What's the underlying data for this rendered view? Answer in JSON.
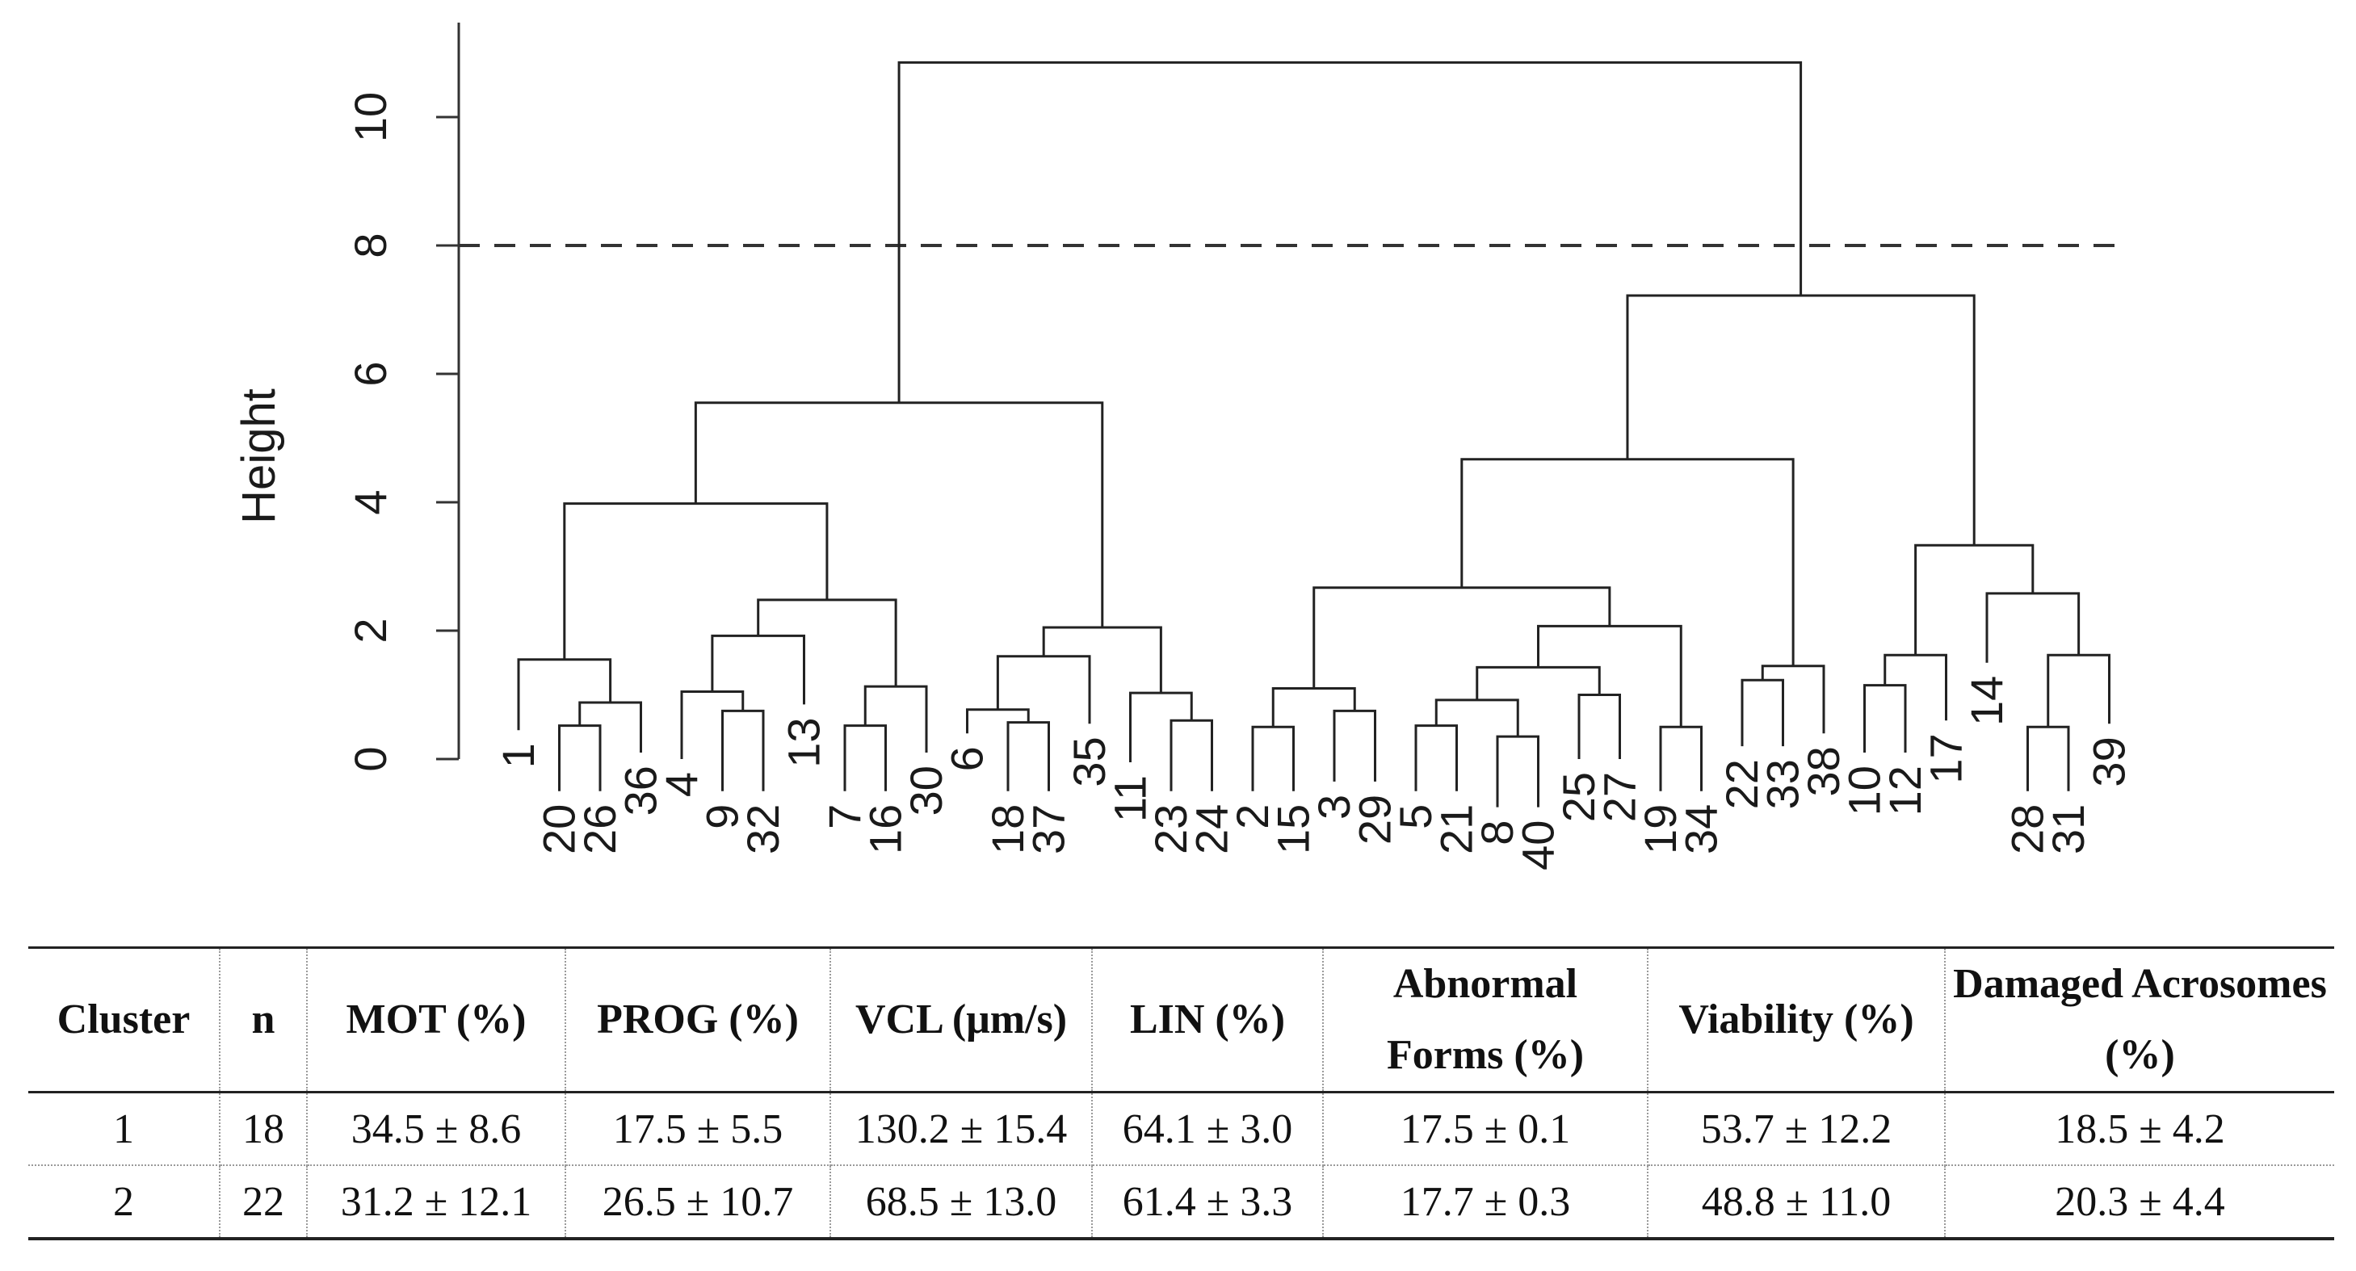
{
  "dendrogram": {
    "y_axis_label": "Height",
    "y_ticks": [
      0,
      2,
      4,
      6,
      8,
      10
    ],
    "cut_height": 8,
    "leaves": [
      {
        "id": "1",
        "h": 0.45
      },
      {
        "id": "20",
        "h": -0.5
      },
      {
        "id": "26",
        "h": -0.5
      },
      {
        "id": "36",
        "h": 0.1
      },
      {
        "id": "4",
        "h": 0
      },
      {
        "id": "9",
        "h": -0.5
      },
      {
        "id": "32",
        "h": -0.5
      },
      {
        "id": "13",
        "h": 0.85
      },
      {
        "id": "7",
        "h": -0.5
      },
      {
        "id": "16",
        "h": -0.5
      },
      {
        "id": "30",
        "h": 0.1
      },
      {
        "id": "6",
        "h": 0.4
      },
      {
        "id": "18",
        "h": -0.5
      },
      {
        "id": "37",
        "h": -0.5
      },
      {
        "id": "35",
        "h": 0.55
      },
      {
        "id": "11",
        "h": -0.05
      },
      {
        "id": "23",
        "h": -0.5
      },
      {
        "id": "24",
        "h": -0.5
      },
      {
        "id": "2",
        "h": -0.5
      },
      {
        "id": "15",
        "h": -0.5
      },
      {
        "id": "3",
        "h": -0.35
      },
      {
        "id": "29",
        "h": -0.35
      },
      {
        "id": "5",
        "h": -0.5
      },
      {
        "id": "21",
        "h": -0.5
      },
      {
        "id": "8",
        "h": -0.75
      },
      {
        "id": "40",
        "h": -0.75
      },
      {
        "id": "25",
        "h": 0
      },
      {
        "id": "27",
        "h": 0
      },
      {
        "id": "19",
        "h": -0.5
      },
      {
        "id": "34",
        "h": -0.5
      },
      {
        "id": "22",
        "h": 0.2
      },
      {
        "id": "33",
        "h": 0.2
      },
      {
        "id": "38",
        "h": 0.4
      },
      {
        "id": "10",
        "h": 0.1
      },
      {
        "id": "12",
        "h": 0.1
      },
      {
        "id": "17",
        "h": 0.6
      },
      {
        "id": "14",
        "h": 1.5
      },
      {
        "id": "28",
        "h": -0.5
      },
      {
        "id": "31",
        "h": -0.5
      },
      {
        "id": "39",
        "h": 0.55
      }
    ],
    "merges": [
      [
        1,
        2,
        0.52
      ],
      [
        -1,
        3,
        0.88
      ],
      [
        0,
        -2,
        1.55
      ],
      [
        5,
        6,
        0.75
      ],
      [
        4,
        -4,
        1.05
      ],
      [
        -5,
        7,
        1.92
      ],
      [
        8,
        9,
        0.52
      ],
      [
        -7,
        10,
        1.13
      ],
      [
        -6,
        -8,
        2.48
      ],
      [
        -3,
        -9,
        3.98
      ],
      [
        12,
        13,
        0.57
      ],
      [
        11,
        -11,
        0.77
      ],
      [
        -12,
        14,
        1.6
      ],
      [
        16,
        17,
        0.6
      ],
      [
        15,
        -14,
        1.03
      ],
      [
        -13,
        -15,
        2.05
      ],
      [
        -10,
        -16,
        5.55
      ],
      [
        18,
        19,
        0.5
      ],
      [
        20,
        21,
        0.75
      ],
      [
        -18,
        -19,
        1.1
      ],
      [
        24,
        25,
        0.35
      ],
      [
        22,
        23,
        0.52
      ],
      [
        -22,
        -21,
        0.92
      ],
      [
        26,
        27,
        1.0
      ],
      [
        -23,
        -24,
        1.43
      ],
      [
        28,
        29,
        0.5
      ],
      [
        -25,
        -26,
        2.07
      ],
      [
        -20,
        -27,
        2.67
      ],
      [
        30,
        31,
        1.23
      ],
      [
        -29,
        32,
        1.45
      ],
      [
        -28,
        -30,
        4.67
      ],
      [
        33,
        34,
        1.15
      ],
      [
        -32,
        35,
        1.62
      ],
      [
        37,
        38,
        0.5
      ],
      [
        -34,
        39,
        1.62
      ],
      [
        36,
        -35,
        2.58
      ],
      [
        -33,
        -36,
        3.33
      ],
      [
        -31,
        -37,
        7.22
      ],
      [
        -17,
        -38,
        10.85
      ]
    ]
  },
  "table": {
    "headers": [
      [
        "Cluster"
      ],
      [
        "n"
      ],
      [
        "MOT (%)"
      ],
      [
        "PROG (%)"
      ],
      [
        "VCL (μm/s)"
      ],
      [
        "LIN (%)"
      ],
      [
        "Abnormal",
        "Forms (%)"
      ],
      [
        "Viability (%)"
      ],
      [
        "Damaged Acrosomes",
        "(%)"
      ]
    ],
    "rows": [
      [
        "1",
        "18",
        "34.5 ± 8.6",
        "17.5 ± 5.5",
        "130.2 ± 15.4",
        "64.1 ± 3.0",
        "17.5 ± 0.1",
        "53.7 ± 12.2",
        "18.5 ± 4.2"
      ],
      [
        "2",
        "22",
        "31.2 ± 12.1",
        "26.5 ± 10.7",
        "68.5 ± 13.0",
        "61.4 ± 3.3",
        "17.7 ± 0.3",
        "48.8 ± 11.0",
        "20.3 ± 4.4"
      ]
    ]
  }
}
